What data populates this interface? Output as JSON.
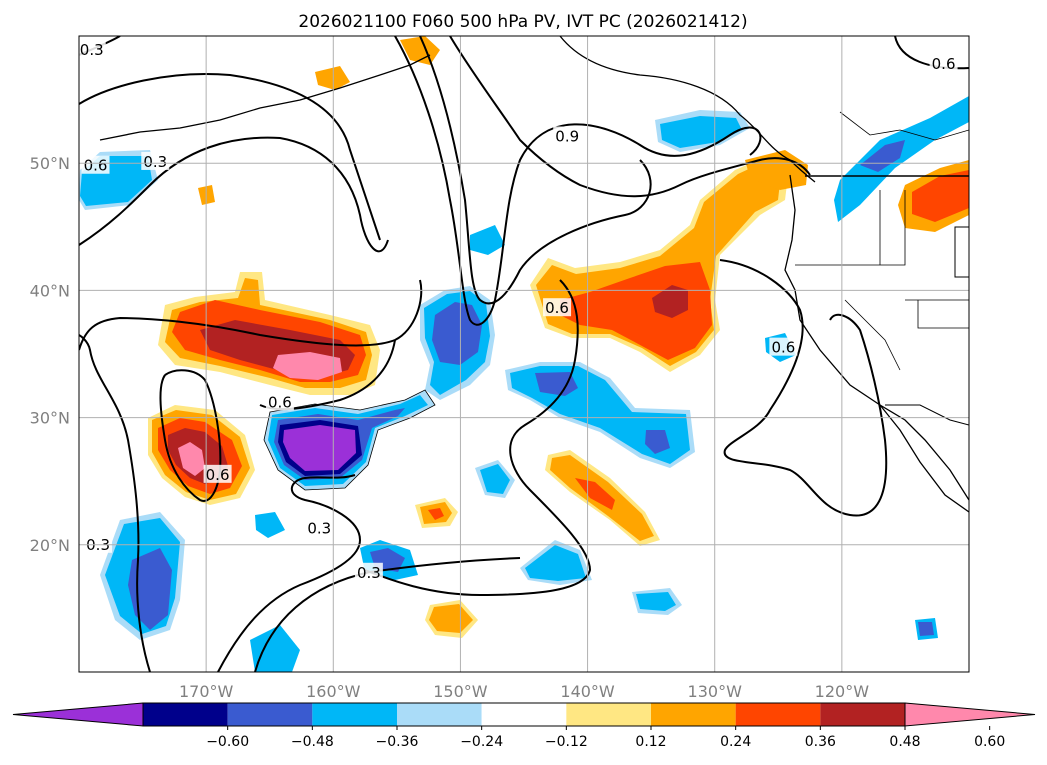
{
  "chart_data": {
    "type": "map-contour",
    "title": "2026021100 F060 500 hPa PV, IVT PC (2026021412)",
    "lon_range": [
      -180,
      -110
    ],
    "lat_range": [
      10,
      60
    ],
    "x_ticks": [
      {
        "value": -170,
        "label": "170°W"
      },
      {
        "value": -160,
        "label": "160°W"
      },
      {
        "value": -150,
        "label": "150°W"
      },
      {
        "value": -140,
        "label": "140°W"
      },
      {
        "value": -130,
        "label": "130°W"
      },
      {
        "value": -120,
        "label": "120°W"
      }
    ],
    "y_ticks": [
      {
        "value": 20,
        "label": "20°N"
      },
      {
        "value": 30,
        "label": "30°N"
      },
      {
        "value": 40,
        "label": "40°N"
      },
      {
        "value": 50,
        "label": "50°N"
      }
    ],
    "grid": true,
    "colorbar": {
      "orientation": "horizontal",
      "extend": "both",
      "boundaries": [
        -0.72,
        -0.6,
        -0.48,
        -0.36,
        -0.24,
        -0.12,
        0.12,
        0.24,
        0.36,
        0.48,
        0.6,
        0.72
      ],
      "colors": [
        "#9b30d8",
        "#00008b",
        "#3a5bd0",
        "#00b7f7",
        "#aadcf8",
        "#ffffff",
        "#ffe783",
        "#ffa500",
        "#ff4500",
        "#b22222",
        "#ff88ac"
      ],
      "tick_labels": [
        "−0.60",
        "−0.48",
        "−0.36",
        "−0.24",
        "−0.12",
        "0.12",
        "0.24",
        "0.36",
        "0.48",
        "0.60"
      ]
    },
    "pv_contour_labels": [
      {
        "text": "0.3",
        "lon": -179.0,
        "lat": 58.9
      },
      {
        "text": "0.6",
        "lon": -178.7,
        "lat": 49.8
      },
      {
        "text": "0.3",
        "lon": -174.0,
        "lat": 50.1
      },
      {
        "text": "0.9",
        "lon": -141.6,
        "lat": 52.1
      },
      {
        "text": "0.6",
        "lon": -112.0,
        "lat": 57.8
      },
      {
        "text": "0.6",
        "lon": -142.4,
        "lat": 38.6
      },
      {
        "text": "0.6",
        "lon": -164.2,
        "lat": 31.2
      },
      {
        "text": "0.6",
        "lon": -169.1,
        "lat": 25.5
      },
      {
        "text": "0.3",
        "lon": -178.5,
        "lat": 20.0
      },
      {
        "text": "0.3",
        "lon": -161.1,
        "lat": 21.3
      },
      {
        "text": "0.3",
        "lon": -157.2,
        "lat": 17.8
      },
      {
        "text": "0.6",
        "lon": -124.6,
        "lat": 35.5
      }
    ],
    "ivt_shaded_regions": [
      {
        "name": "central-pacific-positive",
        "lon": -161,
        "lat": 35.5,
        "peak": 0.65
      },
      {
        "name": "dateline-positive",
        "lon": -171,
        "lat": 27.5,
        "peak": 0.65
      },
      {
        "name": "northeast-positive-band",
        "lon": -133,
        "lat": 40.5,
        "peak": 0.5
      },
      {
        "name": "central-negative",
        "lon": -161,
        "lat": 28.3,
        "peak": -0.72
      },
      {
        "name": "mid-pacific-negative",
        "lon": -150,
        "lat": 36.8,
        "peak": -0.4
      },
      {
        "name": "subtropical-negative",
        "lon": -138,
        "lat": 31.0,
        "peak": -0.35
      },
      {
        "name": "southwest-negative",
        "lon": -174.5,
        "lat": 17.7,
        "peak": -0.4
      },
      {
        "name": "gulf-of-alaska-negative",
        "lon": -175,
        "lat": 49.4,
        "peak": -0.28
      },
      {
        "name": "pacific-northwest-positive",
        "lon": -129,
        "lat": 47.5,
        "peak": 0.35
      },
      {
        "name": "interior-positive",
        "lon": -113,
        "lat": 47.5,
        "peak": 0.42
      },
      {
        "name": "interior-negative",
        "lon": -117.5,
        "lat": 51.0,
        "peak": -0.38
      },
      {
        "name": "subtropical-positive-streak",
        "lon": -140,
        "lat": 25.1,
        "peak": 0.42
      }
    ]
  }
}
